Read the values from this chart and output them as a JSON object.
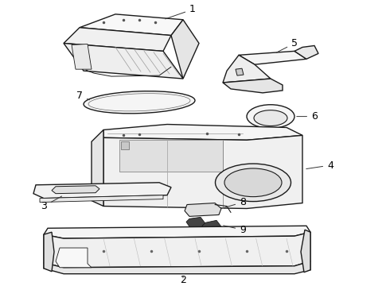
{
  "background_color": "#ffffff",
  "line_color": "#1a1a1a",
  "label_color": "#000000",
  "label_fontsize": 8,
  "fig_width": 4.9,
  "fig_height": 3.6,
  "dpi": 100
}
